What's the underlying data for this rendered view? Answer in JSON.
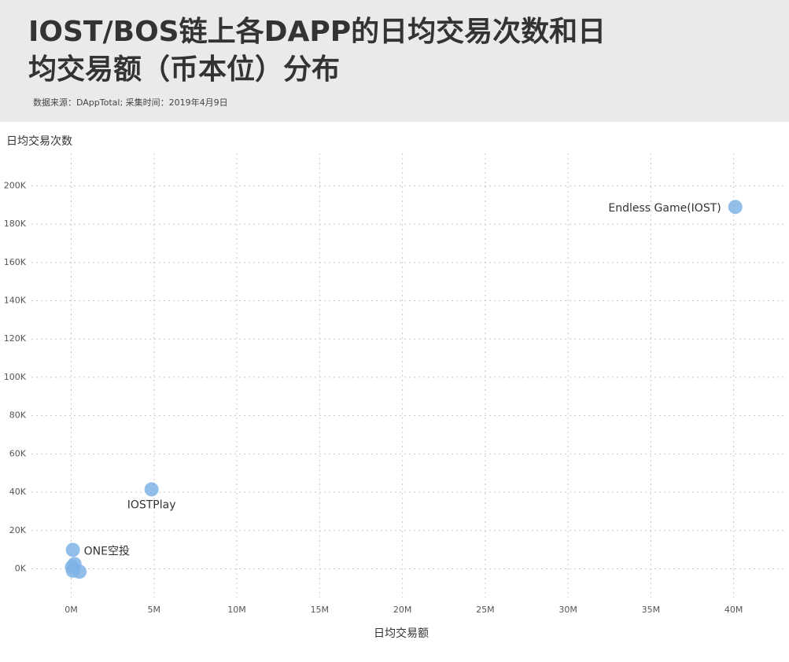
{
  "chart_data": {
    "type": "scatter",
    "title": [
      "IOST/BOS链上各DAPP的日均交易次数和日",
      "均交易额（币本位）分布"
    ],
    "source": "数据来源：DAppTotal;   采集时间：2019年4月9日",
    "ylabel": "日均交易次数",
    "xlabel": "日均交易额",
    "xlim": [
      -2400000,
      43200000
    ],
    "ylim": [
      -15000,
      217000
    ],
    "xticks": [
      {
        "value": 0,
        "label": "0M"
      },
      {
        "value": 5000000,
        "label": "5M"
      },
      {
        "value": 10000000,
        "label": "10M"
      },
      {
        "value": 15000000,
        "label": "15M"
      },
      {
        "value": 20000000,
        "label": "20M"
      },
      {
        "value": 25000000,
        "label": "25M"
      },
      {
        "value": 30000000,
        "label": "30M"
      },
      {
        "value": 35000000,
        "label": "35M"
      },
      {
        "value": 40000000,
        "label": "40M"
      }
    ],
    "yticks": [
      {
        "value": 0,
        "label": "0K"
      },
      {
        "value": 20000,
        "label": "20K"
      },
      {
        "value": 40000,
        "label": "40K"
      },
      {
        "value": 60000,
        "label": "60K"
      },
      {
        "value": 80000,
        "label": "80K"
      },
      {
        "value": 100000,
        "label": "100K"
      },
      {
        "value": 120000,
        "label": "120K"
      },
      {
        "value": 140000,
        "label": "140K"
      },
      {
        "value": 160000,
        "label": "160K"
      },
      {
        "value": 180000,
        "label": "180K"
      },
      {
        "value": 200000,
        "label": "200K"
      }
    ],
    "grid": true,
    "series": [
      {
        "color": "#7fb3e6",
        "x": [
          40100000,
          4850000,
          100000,
          50000,
          200000,
          500000,
          100000
        ],
        "values": [
          189000,
          41500,
          9900,
          1000,
          2500,
          -1500,
          -1000
        ],
        "labels": [
          "Endless Game(IOST)",
          "IOSTPlay",
          "ONE空投",
          null,
          null,
          null,
          null
        ]
      }
    ]
  }
}
